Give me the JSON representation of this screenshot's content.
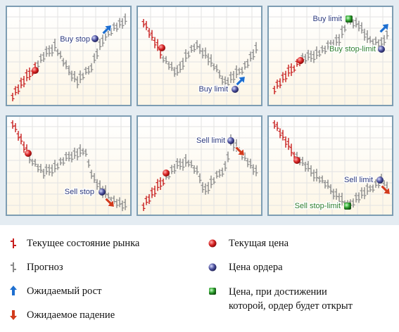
{
  "panels": [
    {
      "id": "buy-stop",
      "label": "Buy stop",
      "label_color": "#2d3a7d",
      "marker": "order",
      "arrow": "up"
    },
    {
      "id": "buy-limit",
      "label": "Buy limit",
      "label_color": "#2d3a7d",
      "marker": "order",
      "arrow": "up"
    },
    {
      "id": "buy-stop-limit",
      "label": "Buy stop-limit",
      "label2": "Buy limit",
      "label_color": "#2f7f2f",
      "label2_color": "#2d3a7d",
      "marker": "green",
      "arrow": "up"
    },
    {
      "id": "sell-stop",
      "label": "Sell stop",
      "label_color": "#2d3a7d",
      "marker": "order",
      "arrow": "down"
    },
    {
      "id": "sell-limit",
      "label": "Sell limit",
      "label_color": "#2d3a7d",
      "marker": "order",
      "arrow": "down"
    },
    {
      "id": "sell-stop-limit",
      "label": "Sell limit",
      "label2": "Sell stop-limit",
      "label_color": "#2d3a7d",
      "label2_color": "#2f7f2f",
      "marker": "green",
      "arrow": "down"
    }
  ],
  "legend": {
    "market_state": "Текущее  состояние  рынка",
    "forecast": "Прогноз",
    "expected_rise": "Ожидаемый рост",
    "expected_fall": "Ожидаемое падение",
    "current_price": "Текущая цена",
    "order_price": "Цена ордера",
    "trigger_price_line1": "Цена, при достижении",
    "trigger_price_line2": "которой, ордер будет открыт"
  },
  "colors": {
    "market_bar": "#c81e1e",
    "forecast_bar": "#8a8a8a",
    "arrow_up": "#1e6fd0",
    "arrow_down": "#d23b1c",
    "current_price_dot": "#d62020",
    "order_price_dot": "#4b4f9c",
    "trigger_dot": "#2da12d"
  }
}
